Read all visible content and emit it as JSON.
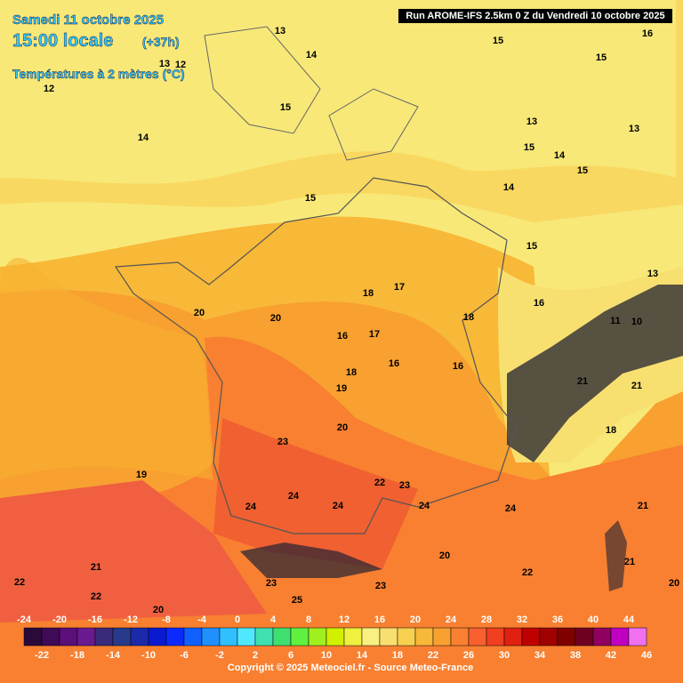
{
  "header": {
    "date": "Samedi 11 octobre 2025",
    "time": "15:00 locale",
    "lead": "(+37h)",
    "variable": "Températures à 2 mètres (°C)",
    "run": "Run AROME-IFS 2.5km 0 Z du Vendredi 10 octobre 2025"
  },
  "copyright": "Copyright © 2025 Meteociel.fr - Source Meteo-France",
  "scale": {
    "values": [
      -24,
      -22,
      -20,
      -18,
      -16,
      -14,
      -12,
      -10,
      -8,
      -6,
      -4,
      -2,
      0,
      2,
      4,
      6,
      8,
      10,
      12,
      14,
      16,
      18,
      20,
      22,
      24,
      26,
      28,
      30,
      32,
      34,
      36,
      38,
      40,
      42,
      44,
      46
    ],
    "colors": [
      "#2a0a3a",
      "#3f0a57",
      "#5a0f7a",
      "#6a1a8f",
      "#3a2a7a",
      "#2a3a8a",
      "#1a2aaa",
      "#0a1ad0",
      "#0a2aff",
      "#1060ff",
      "#2090ff",
      "#30c0ff",
      "#50e8ff",
      "#40e0b0",
      "#40e070",
      "#60f040",
      "#a0f020",
      "#d0f000",
      "#f0f040",
      "#f8f080",
      "#f8e070",
      "#f8d050",
      "#f8b838",
      "#f8a030",
      "#f88030",
      "#f86030",
      "#f04020",
      "#e02010",
      "#c00000",
      "#a00000",
      "#800000",
      "#700020",
      "#900060",
      "#c000c0",
      "#f070f0"
    ]
  },
  "contour_labels": [
    13,
    14,
    15,
    15,
    16,
    13,
    12,
    12,
    15,
    14,
    13,
    13,
    15,
    14,
    15,
    14,
    15,
    15,
    13,
    16,
    18,
    17,
    20,
    20,
    18,
    11,
    10,
    16,
    17,
    16,
    18,
    16,
    19,
    21,
    21,
    20,
    23,
    18,
    19,
    22,
    23,
    24,
    24,
    24,
    24,
    24,
    21,
    20,
    22,
    21,
    20,
    21,
    22,
    23,
    23,
    25,
    22,
    20
  ]
}
